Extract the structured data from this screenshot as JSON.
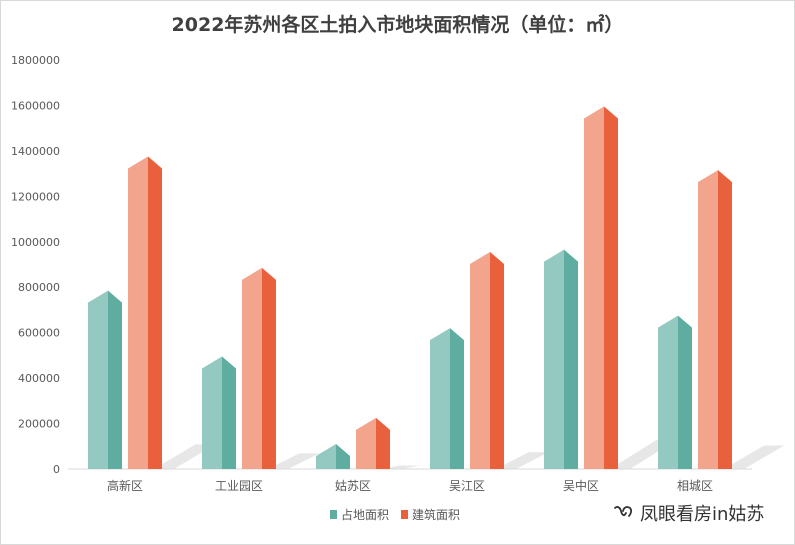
{
  "chart_data": {
    "type": "bar",
    "title": "2022年苏州各区土拍入市地块面积情况（单位：㎡）",
    "categories": [
      "高新区",
      "工业园区",
      "姑苏区",
      "吴江区",
      "吴中区",
      "相城区"
    ],
    "series": [
      {
        "name": "占地面积",
        "values": [
          750000,
          460000,
          75000,
          585000,
          930000,
          640000
        ],
        "color": "#5fada1",
        "color_light": "#93c9c0"
      },
      {
        "name": "建筑面积",
        "values": [
          1340000,
          850000,
          190000,
          920000,
          1560000,
          1280000
        ],
        "color": "#e8603c",
        "color_light": "#f2a48d"
      }
    ],
    "yticks": [
      "0",
      "200000",
      "400000",
      "600000",
      "800000",
      "1000000",
      "1200000",
      "1400000",
      "1600000",
      "1800000"
    ],
    "ylim": [
      0,
      1800000
    ],
    "xlabel": "",
    "ylabel": "",
    "grid": false,
    "legend": "bottom-center"
  },
  "watermark": {
    "text": "凤眼看房in姑苏",
    "icon": "wechat-channel-icon"
  }
}
